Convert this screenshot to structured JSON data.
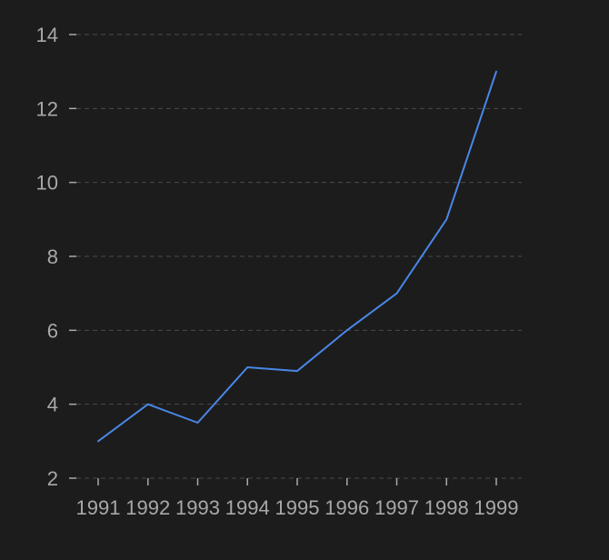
{
  "chart_data": {
    "type": "line",
    "title": "",
    "xlabel": "",
    "ylabel": "",
    "categories": [
      "1991",
      "1992",
      "1993",
      "1994",
      "1995",
      "1996",
      "1997",
      "1998",
      "1999"
    ],
    "series": [
      {
        "values": [
          3.0,
          4.0,
          3.5,
          5.0,
          4.9,
          6.0,
          7.0,
          9.0,
          13.0
        ],
        "color": "#4a86e8"
      }
    ],
    "ylim": [
      2,
      14
    ],
    "yticks": [
      "2",
      "4",
      "6",
      "8",
      "10",
      "12",
      "14"
    ],
    "grid": "horizontal-dashed",
    "legend": "none",
    "colors": {
      "background": "#1c1c1c",
      "text": "#a8a8a8",
      "grid": "#4a4a4a",
      "line": "#4a86e8"
    }
  }
}
